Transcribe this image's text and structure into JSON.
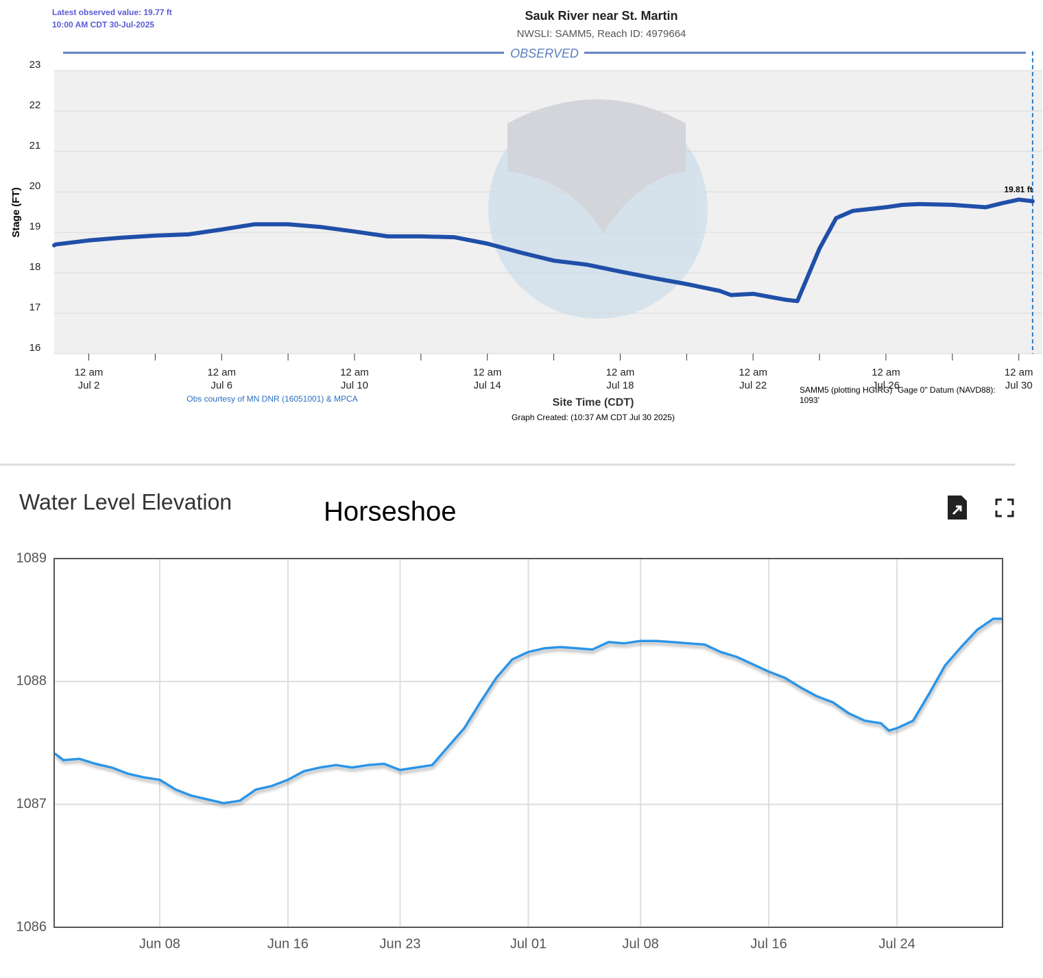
{
  "chart_data": [
    {
      "type": "line",
      "title": "Sauk River near St. Martin",
      "subtitle": "NWSLI: SAMM5, Reach ID: 4979664",
      "latest_lines": [
        "Latest observed value: 19.77 ft",
        "10:00 AM CDT 30-Jul-2025"
      ],
      "series_label": "OBSERVED",
      "ylabel": "Stage (FT)",
      "xlabel": "Site Time (CDT)",
      "notes": [
        "Obs courtesy of MN DNR (16051001) & MPCA",
        "Graph Created: (10:37 AM CDT Jul 30 2025)",
        "SAMM5 (plotting HGIRG) \"Gage 0\" Datum (NAVD88): 1093'"
      ],
      "color": "#1f4fa8",
      "x": [
        "Jun 30 23:00",
        "Jul 1 00:00",
        "Jul 2 00:00",
        "Jul 3 00:00",
        "Jul 4 00:00",
        "Jul 5 00:00",
        "Jul 6 00:00",
        "Jul 7 00:00",
        "Jul 8 00:00",
        "Jul 9 00:00",
        "Jul 10 00:00",
        "Jul 11 00:00",
        "Jul 12 00:00",
        "Jul 13 00:00",
        "Jul 14 00:00",
        "Jul 15 00:00",
        "Jul 16 00:00",
        "Jul 17 00:00",
        "Jul 18 00:00",
        "Jul 19 00:00",
        "Jul 20 00:00",
        "Jul 21 00:00",
        "Jul 21 08:00",
        "Jul 22 00:00",
        "Jul 23 00:00",
        "Jul 23 08:00",
        "Jul 24 00:00",
        "Jul 24 12:00",
        "Jul 25 00:00",
        "Jul 26 00:00",
        "Jul 26 12:00",
        "Jul 27 00:00",
        "Jul 28 00:00",
        "Jul 29 00:00",
        "Jul 29 12:00",
        "Jul 30 00:00",
        "Jul 30 10:00"
      ],
      "values": [
        18.68,
        18.7,
        18.8,
        18.87,
        18.92,
        18.95,
        19.07,
        19.2,
        19.2,
        19.13,
        19.02,
        18.9,
        18.9,
        18.88,
        18.72,
        18.5,
        18.3,
        18.2,
        18.03,
        17.87,
        17.72,
        17.55,
        17.45,
        17.48,
        17.33,
        17.3,
        18.6,
        19.35,
        19.53,
        19.62,
        19.68,
        19.7,
        19.68,
        19.62,
        19.72,
        19.81,
        19.77
      ],
      "latest_x": "Jul 30 10:00",
      "annotations": [
        {
          "text": "19.81 ft",
          "x": "Jul 30 00:00",
          "y": 19.81
        }
      ],
      "xlim": [
        "Jun 30 23:00",
        "Jul 30 17:00"
      ],
      "xticks": [
        {
          "value": "Jul 2 00:00",
          "label": "12 am\nJul 2"
        },
        {
          "value": "Jul 6 00:00",
          "label": "12 am\nJul 6"
        },
        {
          "value": "Jul 10 00:00",
          "label": "12 am\nJul 10"
        },
        {
          "value": "Jul 14 00:00",
          "label": "12 am\nJul 14"
        },
        {
          "value": "Jul 18 00:00",
          "label": "12 am\nJul 18"
        },
        {
          "value": "Jul 22 00:00",
          "label": "12 am\nJul 22"
        },
        {
          "value": "Jul 26 00:00",
          "label": "12 am\nJul 26"
        },
        {
          "value": "Jul 30 00:00",
          "label": "12 am\nJul 30"
        }
      ],
      "xminorticks": [
        "Jul 4 00:00",
        "Jul 8 00:00",
        "Jul 12 00:00",
        "Jul 16 00:00",
        "Jul 20 00:00",
        "Jul 24 00:00",
        "Jul 28 00:00"
      ],
      "ylim": [
        16,
        23
      ],
      "yticks": [
        16,
        17,
        18,
        19,
        20,
        21,
        22,
        23
      ],
      "grid": true
    },
    {
      "type": "line",
      "title": "Water Level Elevation",
      "subtitle": "Horseshoe",
      "color": "#2b95e8",
      "x": [
        "Jun 1 12:00",
        "Jun 2 00:00",
        "Jun 3 00:00",
        "Jun 4 00:00",
        "Jun 5 00:00",
        "Jun 6 00:00",
        "Jun 7 00:00",
        "Jun 8 00:00",
        "Jun 9 00:00",
        "Jun 10 00:00",
        "Jun 11 00:00",
        "Jun 12 00:00",
        "Jun 13 00:00",
        "Jun 14 00:00",
        "Jun 15 00:00",
        "Jun 16 00:00",
        "Jun 17 00:00",
        "Jun 18 00:00",
        "Jun 19 00:00",
        "Jun 20 00:00",
        "Jun 21 00:00",
        "Jun 22 00:00",
        "Jun 23 00:00",
        "Jun 24 00:00",
        "Jun 25 00:00",
        "Jun 26 00:00",
        "Jun 27 00:00",
        "Jun 28 00:00",
        "Jun 29 00:00",
        "Jun 30 00:00",
        "Jul 1 00:00",
        "Jul 2 00:00",
        "Jul 3 00:00",
        "Jul 4 00:00",
        "Jul 5 00:00",
        "Jul 6 00:00",
        "Jul 7 00:00",
        "Jul 8 00:00",
        "Jul 9 00:00",
        "Jul 10 00:00",
        "Jul 11 00:00",
        "Jul 12 00:00",
        "Jul 13 00:00",
        "Jul 14 00:00",
        "Jul 15 00:00",
        "Jul 16 00:00",
        "Jul 17 00:00",
        "Jul 18 00:00",
        "Jul 19 00:00",
        "Jul 20 00:00",
        "Jul 21 00:00",
        "Jul 22 00:00",
        "Jul 23 00:00",
        "Jul 23 12:00",
        "Jul 24 00:00",
        "Jul 25 00:00",
        "Jul 26 00:00",
        "Jul 27 00:00",
        "Jul 28 00:00",
        "Jul 29 00:00",
        "Jul 30 00:00",
        "Jul 30 12:00"
      ],
      "values": [
        1087.41,
        1087.36,
        1087.37,
        1087.33,
        1087.3,
        1087.25,
        1087.22,
        1087.2,
        1087.12,
        1087.07,
        1087.04,
        1087.01,
        1087.03,
        1087.12,
        1087.15,
        1087.2,
        1087.27,
        1087.3,
        1087.32,
        1087.3,
        1087.32,
        1087.33,
        1087.28,
        1087.3,
        1087.32,
        1087.47,
        1087.62,
        1087.83,
        1088.03,
        1088.18,
        1088.24,
        1088.27,
        1088.28,
        1088.27,
        1088.26,
        1088.32,
        1088.31,
        1088.33,
        1088.33,
        1088.32,
        1088.31,
        1088.3,
        1088.24,
        1088.2,
        1088.14,
        1088.08,
        1088.03,
        1087.95,
        1087.88,
        1087.83,
        1087.74,
        1087.68,
        1087.66,
        1087.6,
        1087.62,
        1087.68,
        1087.9,
        1088.13,
        1088.28,
        1088.42,
        1088.51,
        1088.51
      ],
      "xlim": [
        "Jun 1 10:00",
        "Jul 30 14:00"
      ],
      "xticks": [
        {
          "value": "Jun 8 00:00",
          "label": "Jun 08"
        },
        {
          "value": "Jun 16 00:00",
          "label": "Jun 16"
        },
        {
          "value": "Jun 23 00:00",
          "label": "Jun 23"
        },
        {
          "value": "Jul 1 00:00",
          "label": "Jul 01"
        },
        {
          "value": "Jul 8 00:00",
          "label": "Jul 08"
        },
        {
          "value": "Jul 16 00:00",
          "label": "Jul 16"
        },
        {
          "value": "Jul 24 00:00",
          "label": "Jul 24"
        }
      ],
      "ylim": [
        1086,
        1089
      ],
      "yticks": [
        1086,
        1087,
        1088,
        1089
      ],
      "grid": true
    }
  ]
}
